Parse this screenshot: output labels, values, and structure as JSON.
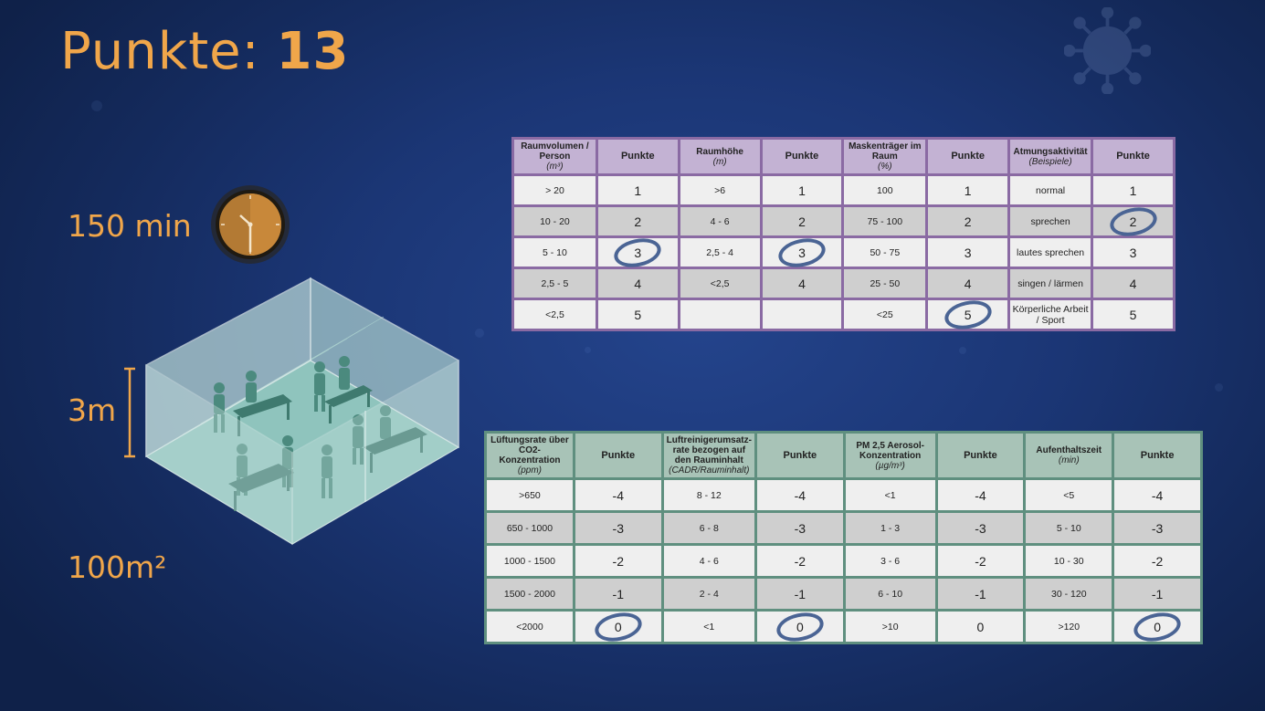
{
  "score": {
    "label": "Punkte:",
    "value": "13"
  },
  "room": {
    "duration_label": "150 min",
    "height_label": "3m",
    "area_label": "100m²"
  },
  "colors": {
    "accent": "#f0a64a",
    "top_table_border": "#8a6aa3",
    "bottom_table_border": "#5f8f7f",
    "circle": "#4a6494"
  },
  "table_top": {
    "columns": [
      {
        "header": "Raumvolumen / Person",
        "unit": "(m³)",
        "punkte": "Punkte",
        "rows": [
          [
            "> 20",
            "1"
          ],
          [
            "10 - 20",
            "2"
          ],
          [
            "5 - 10",
            "3"
          ],
          [
            "2,5 - 5",
            "4"
          ],
          [
            "<2,5",
            "5"
          ]
        ],
        "selected": 2
      },
      {
        "header": "Raumhöhe",
        "unit": "(m)",
        "punkte": "Punkte",
        "rows": [
          [
            ">6",
            "1"
          ],
          [
            "4 - 6",
            "2"
          ],
          [
            "2,5 - 4",
            "3"
          ],
          [
            "<2,5",
            "4"
          ],
          [
            "",
            ""
          ]
        ],
        "selected": 2
      },
      {
        "header": "Maskenträger im Raum",
        "unit": "(%)",
        "punkte": "Punkte",
        "rows": [
          [
            "100",
            "1"
          ],
          [
            "75 - 100",
            "2"
          ],
          [
            "50 - 75",
            "3"
          ],
          [
            "25 - 50",
            "4"
          ],
          [
            "<25",
            "5"
          ]
        ],
        "selected": 4
      },
      {
        "header": "Atmungsaktivität",
        "unit": "(Beispiele)",
        "punkte": "Punkte",
        "rows": [
          [
            "normal",
            "1"
          ],
          [
            "sprechen",
            "2"
          ],
          [
            "lautes sprechen",
            "3"
          ],
          [
            "singen / lärmen",
            "4"
          ],
          [
            "Körperliche Arbeit / Sport",
            "5"
          ]
        ],
        "selected": 1
      }
    ]
  },
  "table_bottom": {
    "columns": [
      {
        "header": "Lüftungsrate über CO2-Konzentration",
        "unit": "(ppm)",
        "punkte": "Punkte",
        "rows": [
          [
            ">650",
            "-4"
          ],
          [
            "650 - 1000",
            "-3"
          ],
          [
            "1000 - 1500",
            "-2"
          ],
          [
            "1500 - 2000",
            "-1"
          ],
          [
            "<2000",
            "0"
          ]
        ],
        "selected": 4
      },
      {
        "header": "Luftreinigerumsatz-rate bezogen auf den Rauminhalt",
        "unit": "(CADR/Rauminhalt)",
        "punkte": "Punkte",
        "rows": [
          [
            "8 - 12",
            "-4"
          ],
          [
            "6 - 8",
            "-3"
          ],
          [
            "4 - 6",
            "-2"
          ],
          [
            "2 - 4",
            "-1"
          ],
          [
            "<1",
            "0"
          ]
        ],
        "selected": 4
      },
      {
        "header": "PM 2,5 Aerosol-Konzentration",
        "unit": "(µg/m³)",
        "punkte": "Punkte",
        "rows": [
          [
            "<1",
            "-4"
          ],
          [
            "1 - 3",
            "-3"
          ],
          [
            "3 - 6",
            "-2"
          ],
          [
            "6 - 10",
            "-1"
          ],
          [
            ">10",
            "0"
          ]
        ],
        "selected": -1
      },
      {
        "header": "Aufenthaltszeit",
        "unit": "(min)",
        "punkte": "Punkte",
        "rows": [
          [
            "<5",
            "-4"
          ],
          [
            "5 - 10",
            "-3"
          ],
          [
            "10 - 30",
            "-2"
          ],
          [
            "30 - 120",
            "-1"
          ],
          [
            ">120",
            "0"
          ]
        ],
        "selected": 4
      }
    ]
  }
}
